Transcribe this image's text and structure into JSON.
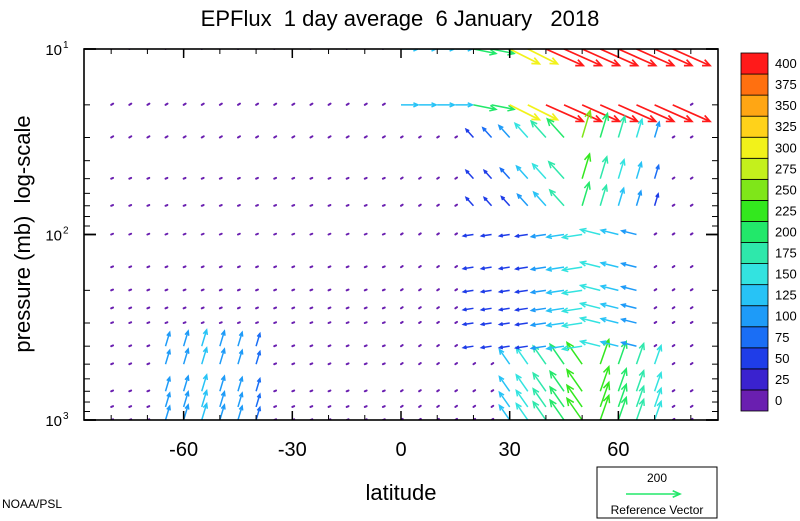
{
  "chart_data": {
    "type": "vector-field",
    "title": "EPFlux  1 day average  6 January   2018",
    "xlabel": "latitude",
    "ylabel": "pressure (mb)  log-scale",
    "x_ticks": [
      -60,
      -30,
      0,
      30,
      60
    ],
    "x_tick_labels": [
      "-60",
      "-30",
      "0",
      "30",
      "60"
    ],
    "xlim": [
      -87.5,
      87.5
    ],
    "y_scale": "log",
    "y_reversed": true,
    "ylim": [
      1000,
      10
    ],
    "y_ticks": [
      {
        "value": 10,
        "base": "10",
        "exp": "1"
      },
      {
        "value": 100,
        "base": "10",
        "exp": "2"
      },
      {
        "value": 1000,
        "base": "10",
        "exp": "3"
      }
    ],
    "levels": [
      1000,
      850,
      700,
      500,
      400,
      300,
      250,
      200,
      150,
      100,
      70,
      50,
      30,
      20,
      10
    ],
    "colorbar": {
      "labels": [
        "0",
        "25",
        "50",
        "75",
        "100",
        "125",
        "150",
        "175",
        "200",
        "225",
        "250",
        "275",
        "300",
        "325",
        "350",
        "375",
        "400"
      ],
      "colors": [
        "#6a1fb0",
        "#3a22cf",
        "#1f3de8",
        "#1a6ef5",
        "#1e9bf8",
        "#27c3f6",
        "#33e3e0",
        "#2ee8ab",
        "#22e86a",
        "#33e81e",
        "#7fe619",
        "#c4f01c",
        "#f2f21a",
        "#ffd21a",
        "#ffa614",
        "#ff7010",
        "#ff1a1a"
      ]
    },
    "reference_vector": {
      "magnitude": "200",
      "label": "Reference Vector",
      "color": "#22e86a"
    },
    "features": [
      {
        "name": "stratospheric-jet-northward",
        "lat_range": [
          30,
          80
        ],
        "pressure_range": [
          10,
          20
        ],
        "magnitude": "400+",
        "direction": "down-right"
      },
      {
        "name": "upward-flux-high-latitude",
        "lat_range": [
          30,
          70
        ],
        "pressure_range": [
          30,
          1000
        ],
        "magnitude": "125-300",
        "direction": "up"
      },
      {
        "name": "upward-flux-southern",
        "lat_range": [
          -65,
          -45
        ],
        "pressure_range": [
          400,
          1000
        ],
        "magnitude": "75-150",
        "direction": "up"
      }
    ]
  },
  "credit": "NOAA/PSL"
}
